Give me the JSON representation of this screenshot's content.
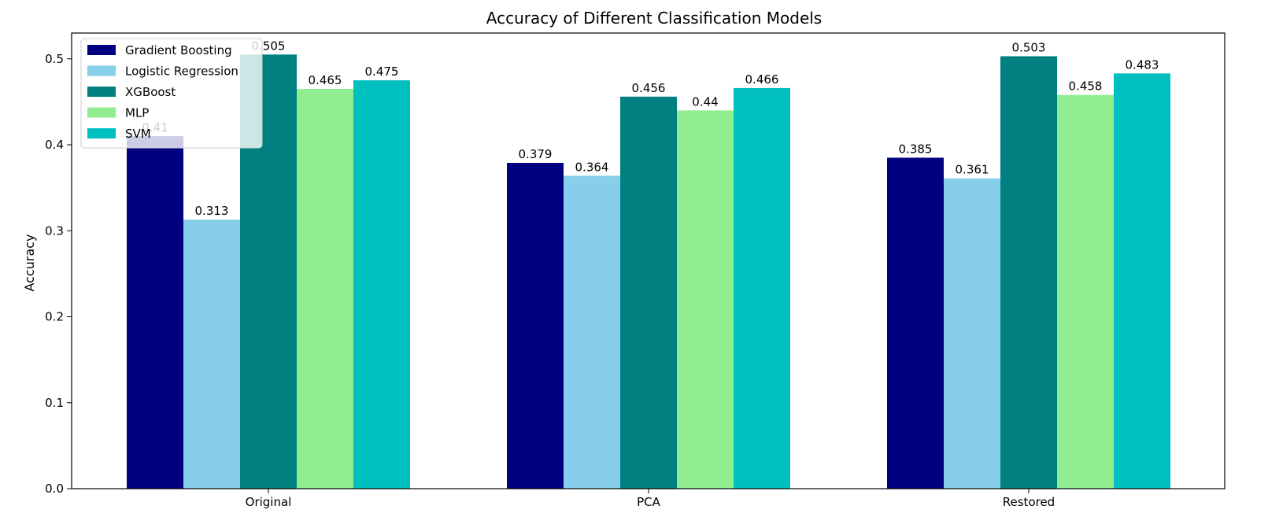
{
  "chart_data": {
    "type": "bar",
    "title": "Accuracy of Different Classification Models",
    "xlabel": "",
    "ylabel": "Accuracy",
    "categories": [
      "Original",
      "PCA",
      "Restored"
    ],
    "ylim": [
      0,
      0.53
    ],
    "yticks": [
      0.0,
      0.1,
      0.2,
      0.3,
      0.4,
      0.5
    ],
    "ytick_labels": [
      "0.0",
      "0.1",
      "0.2",
      "0.3",
      "0.4",
      "0.5"
    ],
    "legend_position": "top-left",
    "grid": false,
    "series": [
      {
        "name": "Gradient Boosting",
        "color": "#000080",
        "values": [
          0.41,
          0.379,
          0.385
        ],
        "labels": [
          "0.41",
          "0.379",
          "0.385"
        ]
      },
      {
        "name": "Logistic Regression",
        "color": "#87ceeb",
        "values": [
          0.313,
          0.364,
          0.361
        ],
        "labels": [
          "0.313",
          "0.364",
          "0.361"
        ]
      },
      {
        "name": "XGBoost",
        "color": "#008080",
        "values": [
          0.505,
          0.456,
          0.503
        ],
        "labels": [
          "0.505",
          "0.456",
          "0.503"
        ]
      },
      {
        "name": "MLP",
        "color": "#90ee90",
        "values": [
          0.465,
          0.44,
          0.458
        ],
        "labels": [
          "0.465",
          "0.44",
          "0.458"
        ]
      },
      {
        "name": "SVM",
        "color": "#00bfbf",
        "values": [
          0.475,
          0.466,
          0.483
        ],
        "labels": [
          "0.475",
          "0.466",
          "0.483"
        ]
      }
    ]
  }
}
